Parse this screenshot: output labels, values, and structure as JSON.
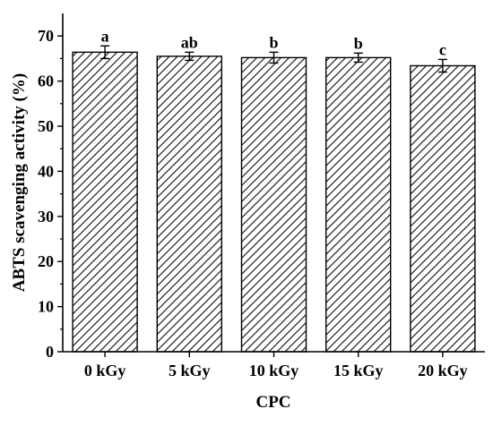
{
  "chart_data": {
    "type": "bar",
    "title": "",
    "xlabel": "CPC",
    "ylabel": "ABTS scavenging activity (%)",
    "categories": [
      "0 kGy",
      "5 kGy",
      "10 kGy",
      "15 kGy",
      "20 kGy"
    ],
    "series": [
      {
        "values": [
          66.4,
          65.5,
          65.2,
          65.2,
          63.4
        ],
        "errors": [
          1.4,
          0.9,
          1.2,
          1.0,
          1.4
        ],
        "significance_labels": [
          "a",
          "ab",
          "b",
          "b",
          "c"
        ]
      }
    ],
    "ylim": [
      0,
      75
    ],
    "yticks": [
      0,
      10,
      20,
      30,
      40,
      50,
      60,
      70
    ],
    "bar_fill": "diagonal-hatch",
    "colors": {
      "bar_stroke": "#000000",
      "hatch": "#000000",
      "background": "#ffffff"
    },
    "grid": false,
    "legend": "none"
  }
}
